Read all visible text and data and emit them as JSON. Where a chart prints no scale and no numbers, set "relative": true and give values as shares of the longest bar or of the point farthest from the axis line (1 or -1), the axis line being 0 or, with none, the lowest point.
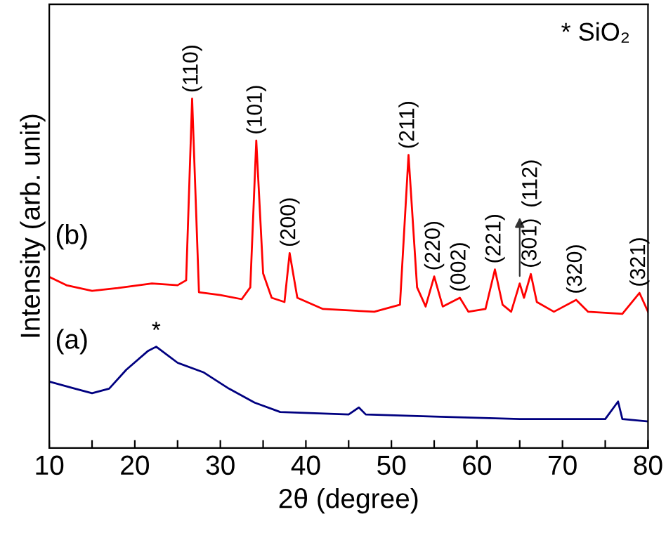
{
  "chart_data": {
    "type": "line",
    "relative": true,
    "xlabel": "2θ (degree)",
    "ylabel": "Intensity (arb. unit)",
    "xlim": [
      10,
      80
    ],
    "xticks": [
      10,
      {
        "value": 15,
        "label": null
      },
      20,
      {
        "value": 25,
        "label": null
      },
      30,
      {
        "value": 35,
        "label": null
      },
      40,
      {
        "value": 45,
        "label": null
      },
      50,
      {
        "value": 55,
        "label": null
      },
      60,
      {
        "value": 65,
        "label": null
      },
      70,
      {
        "value": 75,
        "label": null
      },
      80
    ],
    "grid": false,
    "legend": false,
    "tick_labels": "x",
    "marker": "none",
    "line_style": "solid",
    "series": [
      {
        "color": "#ff0000",
        "x": [
          10,
          12,
          15,
          18,
          22,
          25,
          26,
          26.7,
          27.5,
          30,
          32.5,
          33.5,
          34.2,
          35,
          36,
          37.5,
          38.1,
          39,
          42,
          48,
          51,
          52,
          53,
          54,
          55,
          56,
          58,
          59,
          61,
          62.1,
          63,
          64,
          65,
          65.5,
          66.3,
          67,
          69,
          71.6,
          73,
          77,
          79,
          80
        ],
        "values": [
          0.49,
          0.466,
          0.45,
          0.458,
          0.471,
          0.466,
          0.48,
          1.0,
          0.446,
          0.438,
          0.426,
          0.46,
          0.88,
          0.5,
          0.43,
          0.418,
          0.558,
          0.43,
          0.398,
          0.39,
          0.41,
          0.839,
          0.46,
          0.405,
          0.491,
          0.405,
          0.43,
          0.39,
          0.398,
          0.511,
          0.41,
          0.39,
          0.471,
          0.43,
          0.498,
          0.418,
          0.39,
          0.424,
          0.39,
          0.384,
          0.444,
          0.39
        ]
      },
      {
        "color": "#000080",
        "x": [
          10,
          13,
          15,
          17,
          19,
          21.5,
          22.5,
          25,
          28,
          31,
          34,
          37,
          45,
          46.2,
          47,
          55,
          65,
          75,
          76.5,
          77,
          80
        ],
        "values": [
          0.19,
          0.17,
          0.157,
          0.17,
          0.224,
          0.277,
          0.29,
          0.244,
          0.217,
          0.17,
          0.13,
          0.103,
          0.096,
          0.116,
          0.096,
          0.09,
          0.083,
          0.083,
          0.133,
          0.083,
          0.076
        ]
      }
    ],
    "annotations": [
      {
        "text": "(110)",
        "x": 26.7,
        "y": 1.0
      },
      {
        "text": "(101)",
        "x": 34.2,
        "y": 0.88
      },
      {
        "text": "(200)",
        "x": 38.1,
        "y": 0.558
      },
      {
        "text": "(211)",
        "x": 52,
        "y": 0.839
      },
      {
        "text": "(220)",
        "x": 55,
        "y": 0.491
      },
      {
        "text": "(002)",
        "x": 58,
        "y": 0.43
      },
      {
        "text": "(221)",
        "x": 62.1,
        "y": 0.511
      },
      {
        "text": "(112)",
        "x": 65,
        "y": 0.471
      },
      {
        "text": "(301)",
        "x": 66.3,
        "y": 0.498
      },
      {
        "text": "(320)",
        "x": 71.6,
        "y": 0.424
      },
      {
        "text": "(321)",
        "x": 79,
        "y": 0.444
      },
      {
        "text": "(b)",
        "x": 10,
        "y": 0.49
      },
      {
        "text": "(a)",
        "x": 10,
        "y": 0.19
      },
      {
        "text": "*",
        "x": 22.5,
        "y": 0.29
      },
      "* SiO₂"
    ]
  }
}
